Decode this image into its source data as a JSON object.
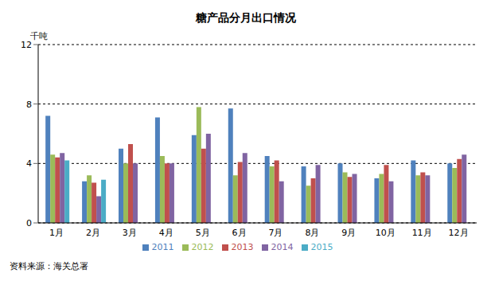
{
  "chart_data": {
    "type": "bar",
    "title": "糖产品分月出口情况",
    "y_label": "千吨",
    "annotations": [
      "资料来源：海关总署"
    ],
    "categories": [
      "1月",
      "2月",
      "3月",
      "4月",
      "5月",
      "6月",
      "7月",
      "8月",
      "9月",
      "10月",
      "11月",
      "12月"
    ],
    "series": [
      {
        "name": "2011",
        "color": "#4f81bd",
        "values": [
          7.2,
          2.8,
          5.0,
          7.1,
          5.9,
          7.7,
          4.5,
          3.8,
          4.0,
          3.0,
          4.2,
          4.0
        ]
      },
      {
        "name": "2012",
        "color": "#9bbb59",
        "values": [
          4.6,
          3.2,
          4.0,
          4.5,
          7.8,
          3.2,
          3.8,
          2.5,
          3.4,
          3.3,
          3.2,
          3.7
        ]
      },
      {
        "name": "2013",
        "color": "#c0504d",
        "values": [
          4.4,
          2.7,
          5.3,
          4.0,
          5.0,
          4.1,
          4.2,
          3.0,
          3.1,
          3.9,
          3.4,
          4.3
        ]
      },
      {
        "name": "2014",
        "color": "#8064a2",
        "values": [
          4.7,
          1.8,
          4.0,
          4.0,
          6.0,
          4.7,
          2.8,
          3.9,
          3.3,
          2.8,
          3.2,
          4.6
        ]
      },
      {
        "name": "2015",
        "color": "#4bacc6",
        "values": [
          4.2,
          2.9,
          null,
          null,
          null,
          null,
          null,
          null,
          null,
          null,
          null,
          null
        ]
      }
    ],
    "ylim": [
      0,
      12
    ],
    "yticks": [
      0,
      4,
      8,
      12
    ],
    "grid": true,
    "legend": "bottom"
  }
}
